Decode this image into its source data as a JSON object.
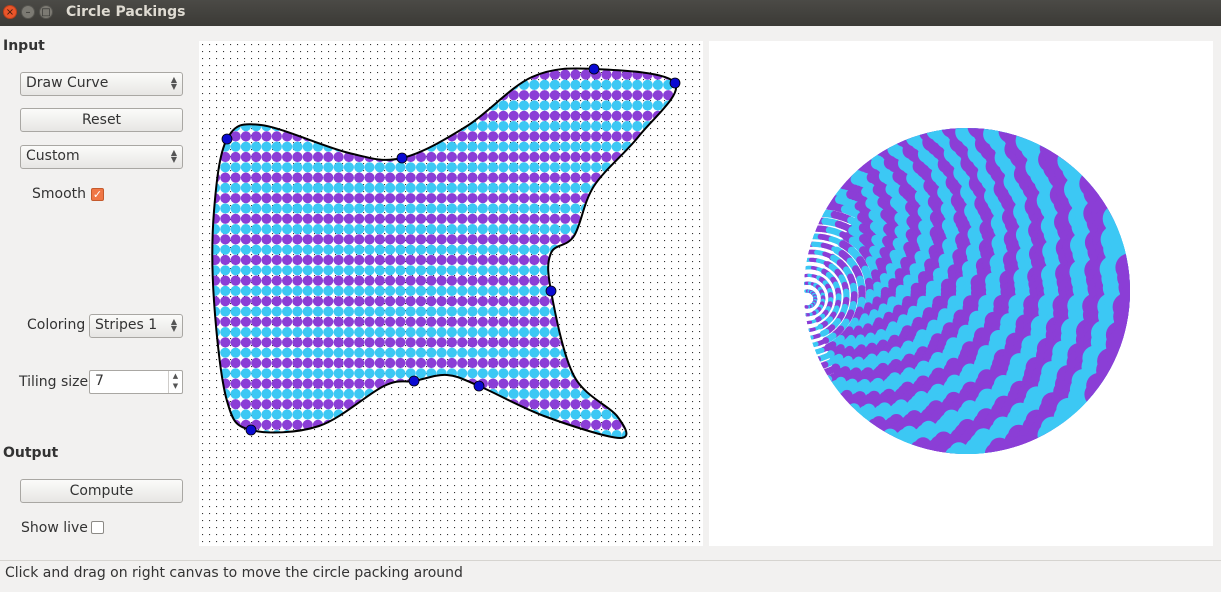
{
  "window": {
    "title": "Circle Packings"
  },
  "input": {
    "heading": "Input",
    "mode": "Draw Curve",
    "reset_label": "Reset",
    "shape": "Custom",
    "smooth_label": "Smooth",
    "smooth_checked": true,
    "coloring_label": "Coloring",
    "coloring": "Stripes 1",
    "tiling_label": "Tiling size",
    "tiling_size": "7"
  },
  "output": {
    "heading": "Output",
    "compute_label": "Compute",
    "show_live_label": "Show live",
    "show_live_checked": false
  },
  "status": "Click and drag on right canvas to move the circle packing around",
  "colors": {
    "cyan": "#3cc8f4",
    "purple": "#8b3ed6",
    "control_point": "#0a0ad2",
    "curve": "#000000"
  },
  "icons": [
    "close-icon",
    "minimize-icon",
    "maximize-icon",
    "dropdown-arrow-icon",
    "checkmark-icon",
    "spin-arrows-icon"
  ]
}
